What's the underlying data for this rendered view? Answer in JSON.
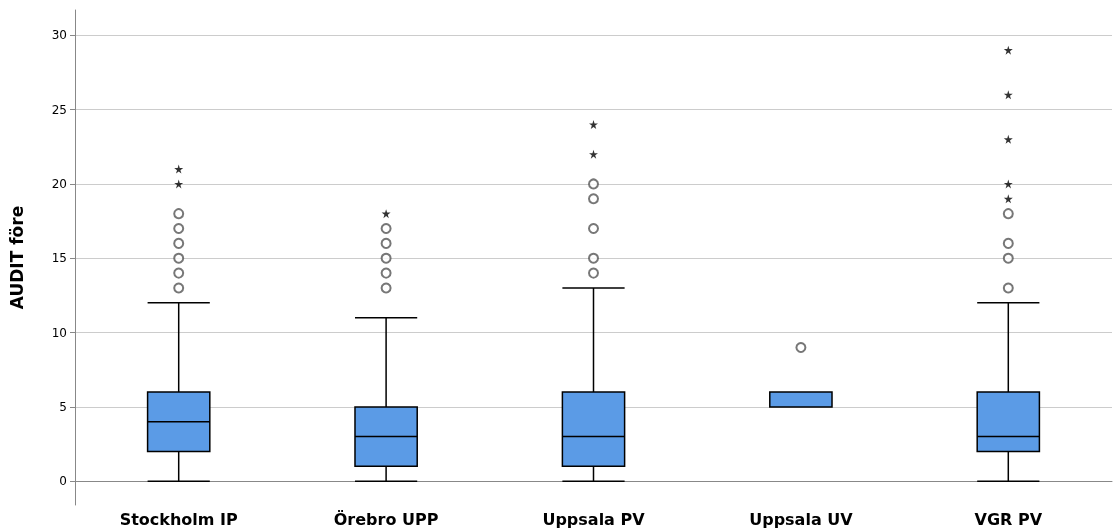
{
  "chart_data": {
    "type": "box",
    "ylabel": "AUDIT före",
    "categories": [
      "Stockholm IP",
      "Örebro UPP",
      "Uppsala PV",
      "Uppsala UV",
      "VGR PV"
    ],
    "series": [
      {
        "type": "box",
        "color": "#5b9be6",
        "boxes": [
          {
            "low": 0,
            "q1": 2,
            "median": 4,
            "q3": 6,
            "high": 12,
            "outliers": [
              13,
              14,
              15,
              16,
              17,
              18
            ]
          },
          {
            "low": 0,
            "q1": 1,
            "median": 3,
            "q3": 5,
            "high": 11,
            "outliers": [
              13,
              14,
              15,
              16,
              17
            ]
          },
          {
            "low": 0,
            "q1": 1,
            "median": 3,
            "q3": 6,
            "high": 13,
            "outliers": [
              14,
              15,
              17,
              19,
              20
            ]
          },
          {
            "low": 5,
            "q1": 5,
            "median": 5,
            "q3": 6,
            "high": 6,
            "outliers": [
              9
            ]
          },
          {
            "low": 0,
            "q1": 2,
            "median": 3,
            "q3": 6,
            "high": 12,
            "outliers": [
              13,
              15,
              16,
              18
            ]
          }
        ]
      },
      {
        "type": "scatter",
        "marker": "star",
        "color": "#000000",
        "x": [
          "Stockholm IP",
          "Stockholm IP",
          "Örebro UPP",
          "Uppsala PV",
          "Uppsala PV",
          "VGR PV",
          "VGR PV",
          "VGR PV",
          "VGR PV",
          "VGR PV"
        ],
        "values": [
          20,
          21,
          18,
          22,
          24,
          19,
          20,
          23,
          26,
          29
        ]
      }
    ],
    "ylim": [
      -1.6,
      31.7
    ],
    "yticks": [
      0,
      5,
      10,
      15,
      20,
      25,
      30
    ],
    "grid": "y"
  }
}
